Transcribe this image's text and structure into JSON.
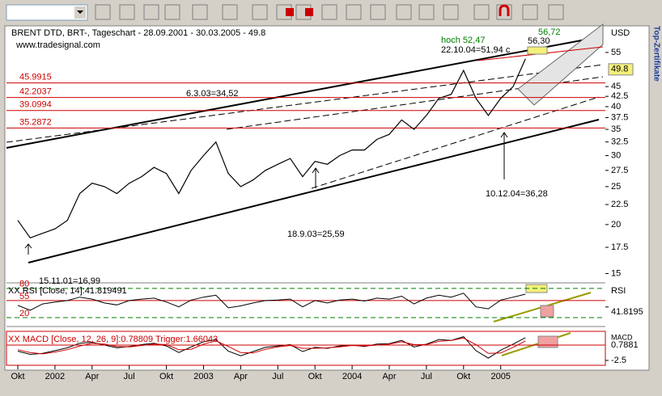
{
  "chart_data": [
    {
      "type": "line",
      "title": "BRENT  DTD, BRT-, Tageschart - 28.09.2001 - 30.03.2005 - 49.8",
      "subtitle": "www.tradesignal.com",
      "y_label": "USD",
      "log_scale": true,
      "x": [
        "2001-10",
        "2001-11",
        "2001-12",
        "2002-01",
        "2002-02",
        "2002-03",
        "2002-04",
        "2002-05",
        "2002-06",
        "2002-07",
        "2002-08",
        "2002-09",
        "2002-10",
        "2002-11",
        "2002-12",
        "2003-01",
        "2003-02",
        "2003-03",
        "2003-04",
        "2003-05",
        "2003-06",
        "2003-07",
        "2003-08",
        "2003-09",
        "2003-10",
        "2003-11",
        "2003-12",
        "2004-01",
        "2004-02",
        "2004-03",
        "2004-04",
        "2004-05",
        "2004-06",
        "2004-07",
        "2004-08",
        "2004-09",
        "2004-10",
        "2004-11",
        "2004-12",
        "2005-01",
        "2005-02",
        "2005-03"
      ],
      "series": [
        {
          "color": "#000000",
          "values": [
            20.5,
            18.5,
            19,
            19.5,
            20.5,
            24,
            25.5,
            25,
            24,
            25.5,
            26.5,
            28,
            27,
            24,
            27.5,
            30,
            32.5,
            27,
            25,
            26,
            27.5,
            28.5,
            29.5,
            26.5,
            29,
            28.5,
            30,
            31,
            31,
            33,
            34,
            37,
            35,
            38,
            42,
            43,
            49.5,
            42,
            38,
            42,
            45,
            53
          ]
        }
      ],
      "ylim": [
        14.2,
        64
      ],
      "yticks": [
        15,
        17.5,
        20,
        22.5,
        25,
        27.5,
        30,
        32.5,
        35,
        37.5,
        40,
        42.5,
        45,
        55
      ],
      "last_value": 49.8,
      "levels": [
        45.9915,
        42.2037,
        39.0994,
        35.2872
      ],
      "level_color": "#cc0000",
      "annotations": [
        "6.3.03=34,52",
        "18.9.03=25,59",
        "15.11.01=16,99",
        "10.12.04=36,28",
        "22.10.04=51,94 c",
        "hoch 52,47",
        "56,72",
        "56,30"
      ],
      "xticks": [
        {
          "value": "2001-10",
          "label": "Okt"
        },
        {
          "value": "2002-01",
          "label": "2002"
        },
        {
          "value": "2002-04",
          "label": "Apr"
        },
        {
          "value": "2002-07",
          "label": "Jul"
        },
        {
          "value": "2002-10",
          "label": "Okt"
        },
        {
          "value": "2003-01",
          "label": "2003"
        },
        {
          "value": "2003-04",
          "label": "Apr"
        },
        {
          "value": "2003-07",
          "label": "Jul"
        },
        {
          "value": "2003-10",
          "label": "Okt"
        },
        {
          "value": "2004-01",
          "label": "2004"
        },
        {
          "value": "2004-04",
          "label": "Apr"
        },
        {
          "value": "2004-07",
          "label": "Jul"
        },
        {
          "value": "2004-10",
          "label": "Okt"
        },
        {
          "value": "2005-01",
          "label": "2005"
        }
      ]
    },
    {
      "type": "line",
      "title": "XX RSI [Close, 14]:41.819491",
      "y_label": "RSI",
      "values": [
        45,
        35,
        48,
        52,
        55,
        62,
        58,
        50,
        46,
        55,
        58,
        60,
        52,
        42,
        56,
        62,
        66,
        40,
        44,
        50,
        55,
        56,
        58,
        42,
        55,
        50,
        56,
        58,
        54,
        60,
        58,
        64,
        48,
        60,
        66,
        62,
        70,
        42,
        38,
        56,
        62,
        68
      ],
      "color": "#000000",
      "ylim": [
        5,
        88
      ],
      "yticks": [
        20,
        55,
        80
      ],
      "last_value": 41.8195
    },
    {
      "type": "line",
      "title": "XX MACD [Close, 12, 26, 9]:0.78809 Trigger:1.66043",
      "y_label": "MACD",
      "series": [
        {
          "color": "#000000",
          "values": [
            -0.5,
            -1.2,
            -1,
            -0.4,
            0.2,
            1.2,
            1.4,
            0.8,
            0.2,
            0.5,
            0.9,
            1.2,
            0.6,
            -0.8,
            0.4,
            1.5,
            2,
            -0.5,
            -1.5,
            -0.6,
            0.3,
            0.6,
            0.9,
            -0.6,
            0.3,
            0.1,
            0.6,
            0.8,
            0.5,
            1,
            1.1,
            1.8,
            0.4,
            1,
            2,
            1.8,
            2.6,
            -0.4,
            -2,
            -0.3,
            1,
            2.4
          ]
        },
        {
          "color": "#cc0000",
          "values": [
            -0.2,
            -0.8,
            -1.1,
            -0.7,
            -0.2,
            0.6,
            1.2,
            1,
            0.5,
            0.4,
            0.7,
            1,
            0.9,
            -0.2,
            -0.1,
            1,
            1.7,
            0.5,
            -0.8,
            -0.9,
            -0.1,
            0.4,
            0.7,
            0.1,
            0.1,
            0.2,
            0.4,
            0.7,
            0.6,
            0.8,
            1,
            1.5,
            0.9,
            0.9,
            1.6,
            1.8,
            2.3,
            0.9,
            -1,
            -0.9,
            0.3,
            1.7
          ]
        }
      ],
      "ylim": [
        -3.2,
        3.4
      ],
      "yticks": [
        -2.5
      ],
      "last_value": 0.7881
    }
  ],
  "sidebar": {
    "label": "Top-Zertifikate"
  }
}
